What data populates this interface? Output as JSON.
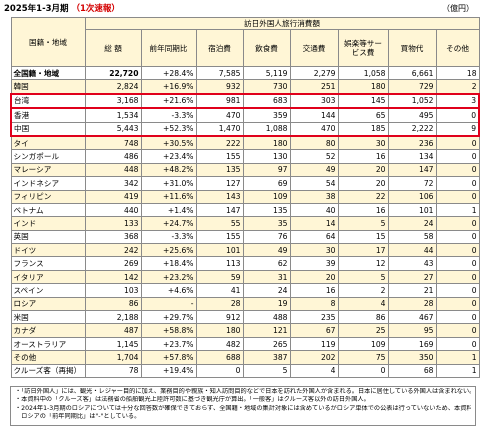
{
  "header": {
    "period": "2025年1-3月期",
    "flash": "（1次速報）",
    "unit": "（億円）"
  },
  "columns": {
    "region": "国籍・地域",
    "total": "総 額",
    "yoy": "前年同期比",
    "breakdown": "訪日外国人旅行消費額",
    "lodging": "宿泊費",
    "food": "飲食費",
    "transport": "交通費",
    "entertainment": "娯楽等サービス費",
    "shopping": "買物代",
    "other": "その他"
  },
  "rows": [
    {
      "name": "全国籍・地域",
      "total": "22,720",
      "yoy": "+28.4%",
      "lodging": "7,585",
      "food": "5,119",
      "transport": "2,279",
      "ent": "1,058",
      "shop": "6,661",
      "other": "18"
    },
    {
      "name": "韓国",
      "total": "2,824",
      "yoy": "+16.9%",
      "lodging": "932",
      "food": "730",
      "transport": "251",
      "ent": "180",
      "shop": "729",
      "other": "2"
    },
    {
      "name": "台湾",
      "total": "3,168",
      "yoy": "+21.6%",
      "lodging": "981",
      "food": "683",
      "transport": "303",
      "ent": "145",
      "shop": "1,052",
      "other": "3"
    },
    {
      "name": "香港",
      "total": "1,534",
      "yoy": "-3.3%",
      "lodging": "470",
      "food": "359",
      "transport": "144",
      "ent": "65",
      "shop": "495",
      "other": "0"
    },
    {
      "name": "中国",
      "total": "5,443",
      "yoy": "+52.3%",
      "lodging": "1,470",
      "food": "1,088",
      "transport": "470",
      "ent": "185",
      "shop": "2,222",
      "other": "9"
    },
    {
      "name": "タイ",
      "total": "748",
      "yoy": "+30.5%",
      "lodging": "222",
      "food": "180",
      "transport": "80",
      "ent": "30",
      "shop": "236",
      "other": "0"
    },
    {
      "name": "シンガポール",
      "total": "486",
      "yoy": "+23.4%",
      "lodging": "155",
      "food": "130",
      "transport": "52",
      "ent": "16",
      "shop": "134",
      "other": "0"
    },
    {
      "name": "マレーシア",
      "total": "448",
      "yoy": "+48.2%",
      "lodging": "135",
      "food": "97",
      "transport": "49",
      "ent": "20",
      "shop": "147",
      "other": "0"
    },
    {
      "name": "インドネシア",
      "total": "342",
      "yoy": "+31.0%",
      "lodging": "127",
      "food": "69",
      "transport": "54",
      "ent": "20",
      "shop": "72",
      "other": "0"
    },
    {
      "name": "フィリピン",
      "total": "419",
      "yoy": "+11.6%",
      "lodging": "143",
      "food": "109",
      "transport": "38",
      "ent": "22",
      "shop": "106",
      "other": "0"
    },
    {
      "name": "ベトナム",
      "total": "440",
      "yoy": "+1.4%",
      "lodging": "147",
      "food": "135",
      "transport": "40",
      "ent": "16",
      "shop": "101",
      "other": "1"
    },
    {
      "name": "インド",
      "total": "133",
      "yoy": "+24.7%",
      "lodging": "55",
      "food": "35",
      "transport": "14",
      "ent": "5",
      "shop": "24",
      "other": "0"
    },
    {
      "name": "英国",
      "total": "368",
      "yoy": "-3.3%",
      "lodging": "155",
      "food": "76",
      "transport": "64",
      "ent": "15",
      "shop": "58",
      "other": "0"
    },
    {
      "name": "ドイツ",
      "total": "242",
      "yoy": "+25.6%",
      "lodging": "101",
      "food": "49",
      "transport": "30",
      "ent": "17",
      "shop": "44",
      "other": "0"
    },
    {
      "name": "フランス",
      "total": "269",
      "yoy": "+18.4%",
      "lodging": "113",
      "food": "62",
      "transport": "39",
      "ent": "12",
      "shop": "43",
      "other": "0"
    },
    {
      "name": "イタリア",
      "total": "142",
      "yoy": "+23.2%",
      "lodging": "59",
      "food": "31",
      "transport": "20",
      "ent": "5",
      "shop": "27",
      "other": "0"
    },
    {
      "name": "スペイン",
      "total": "103",
      "yoy": "+4.6%",
      "lodging": "41",
      "food": "24",
      "transport": "16",
      "ent": "2",
      "shop": "21",
      "other": "0"
    },
    {
      "name": "ロシア",
      "total": "86",
      "yoy": "-",
      "lodging": "28",
      "food": "19",
      "transport": "8",
      "ent": "4",
      "shop": "28",
      "other": "0"
    },
    {
      "name": "米国",
      "total": "2,188",
      "yoy": "+29.7%",
      "lodging": "912",
      "food": "488",
      "transport": "235",
      "ent": "86",
      "shop": "467",
      "other": "0"
    },
    {
      "name": "カナダ",
      "total": "487",
      "yoy": "+58.8%",
      "lodging": "180",
      "food": "121",
      "transport": "67",
      "ent": "25",
      "shop": "95",
      "other": "0"
    },
    {
      "name": "オーストラリア",
      "total": "1,145",
      "yoy": "+23.7%",
      "lodging": "482",
      "food": "265",
      "transport": "119",
      "ent": "109",
      "shop": "169",
      "other": "0"
    },
    {
      "name": "その他",
      "total": "1,704",
      "yoy": "+57.8%",
      "lodging": "688",
      "food": "387",
      "transport": "202",
      "ent": "75",
      "shop": "350",
      "other": "1"
    },
    {
      "name": "クルーズ客（再掲）",
      "total": "78",
      "yoy": "+19.4%",
      "lodging": "0",
      "food": "5",
      "transport": "4",
      "ent": "0",
      "shop": "68",
      "other": "1"
    }
  ],
  "notes": [
    "・「訪日外国人」には、観光・レジャー目的に加え、業務目的や親族・知人訪問目的などで日本を訪れた外国人が含まれる。日本に居住している外国人は含まれない。",
    "・本資料中の「クルーズ客」は法務省の船舶観光上陸許可数に基づき観光庁が算出。「一般客」はクルーズ客以外の訪日外国人。",
    "・2024年1-3月期のロシアについては十分な回答数が確保できておらず、全国籍・地域の集計対象には含めているがロシア単体での公表は行っていないため、本資料の",
    "　ロシアの「前年同期比」は\"-\"としている。"
  ]
}
